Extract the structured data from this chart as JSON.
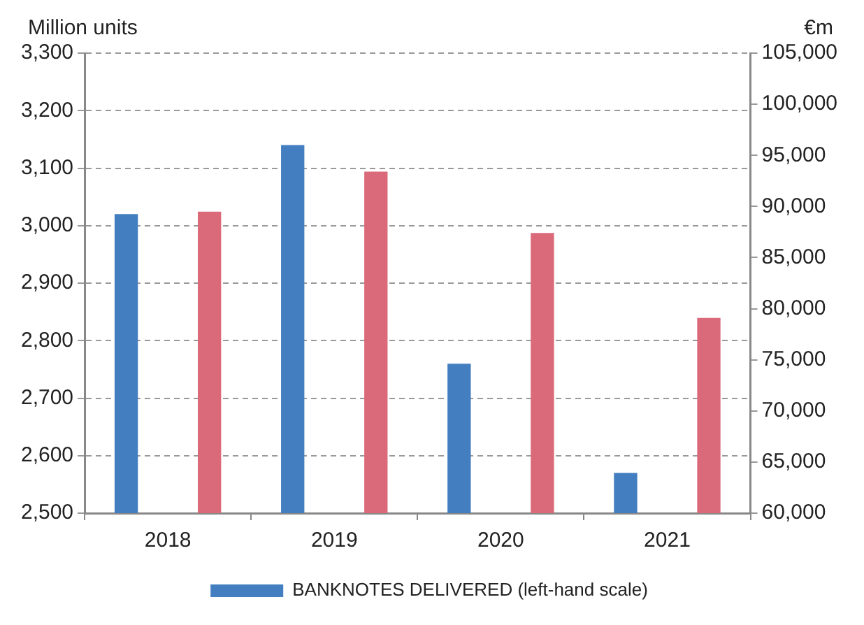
{
  "chart_data": {
    "type": "bar",
    "categories": [
      "2018",
      "2019",
      "2020",
      "2021"
    ],
    "series": [
      {
        "name": "BANKNOTES DELIVERED (left-hand scale)",
        "color": "#427ec0",
        "values": [
          3020,
          3140,
          2760,
          2570
        ]
      },
      {
        "color": "#da6a7a",
        "values": [
          89500,
          93400,
          87400,
          79100
        ],
        "axis": "y2"
      }
    ],
    "ylabel": "Million units",
    "y2label": "€m",
    "ylim": [
      2500,
      3300
    ],
    "yticks": [
      {
        "value": 2500,
        "label": "2,500"
      },
      {
        "value": 2600,
        "label": "2,600"
      },
      {
        "value": 2700,
        "label": "2,700"
      },
      {
        "value": 2800,
        "label": "2,800"
      },
      {
        "value": 2900,
        "label": "2,900"
      },
      {
        "value": 3000,
        "label": "3,000"
      },
      {
        "value": 3100,
        "label": "3,100"
      },
      {
        "value": 3200,
        "label": "3,200"
      },
      {
        "value": 3300,
        "label": "3,300"
      }
    ],
    "y2lim": [
      60000,
      105000
    ],
    "y2ticks": [
      {
        "value": 60000,
        "label": "60,000"
      },
      {
        "value": 65000,
        "label": "65,000"
      },
      {
        "value": 70000,
        "label": "70,000"
      },
      {
        "value": 75000,
        "label": "75,000"
      },
      {
        "value": 80000,
        "label": "80,000"
      },
      {
        "value": 85000,
        "label": "85,000"
      },
      {
        "value": 90000,
        "label": "90,000"
      },
      {
        "value": 95000,
        "label": "95,000"
      },
      {
        "value": 100000,
        "label": "100,000"
      },
      {
        "value": 105000,
        "label": "105,000"
      }
    ],
    "grid": "y",
    "legend": "bottom"
  }
}
